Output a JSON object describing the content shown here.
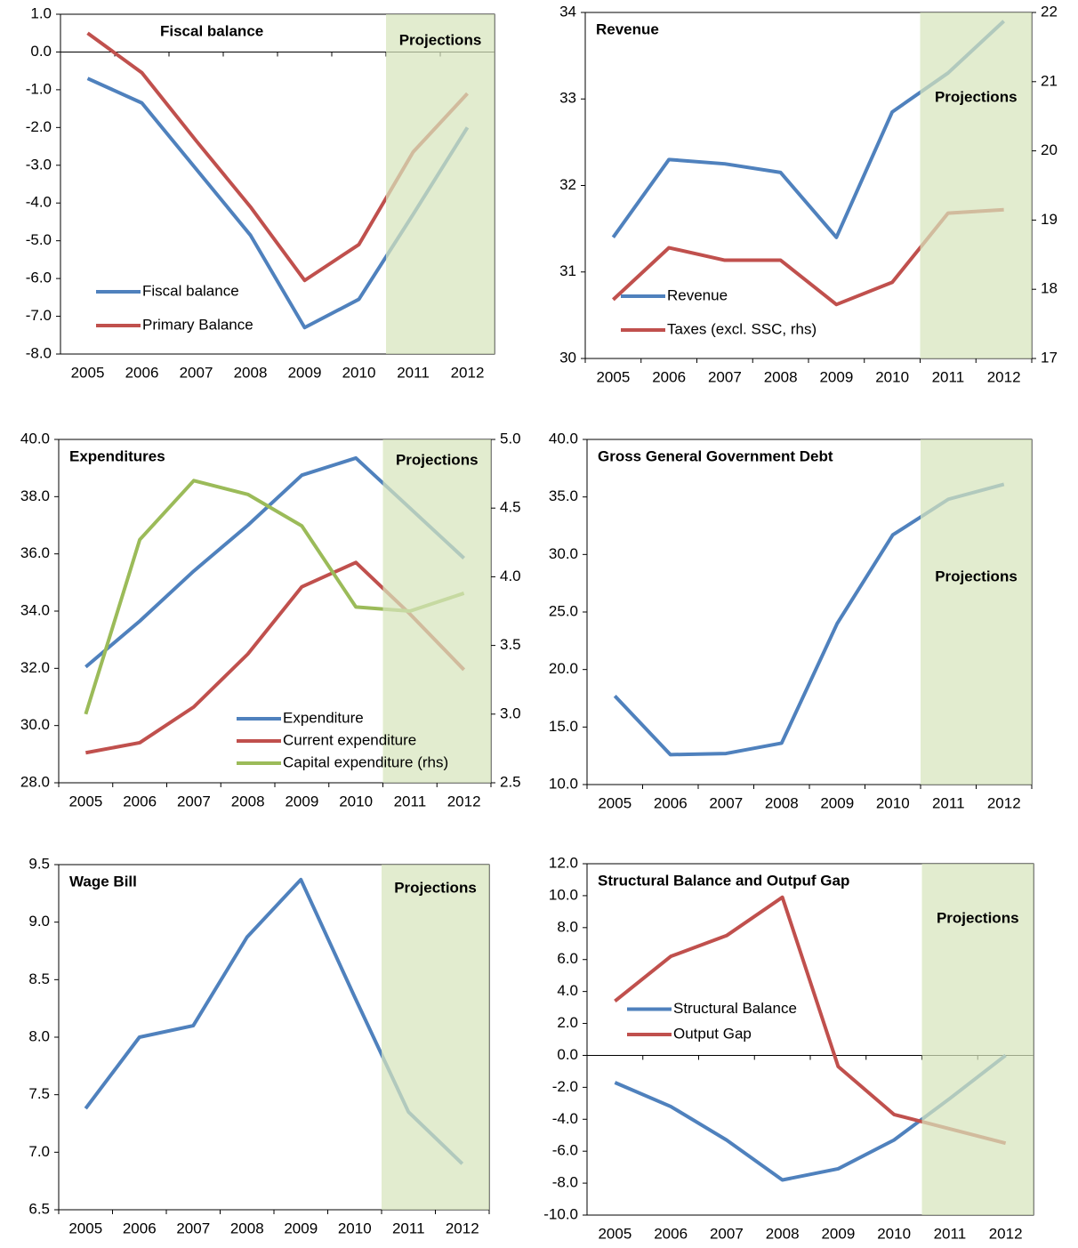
{
  "chart_data": [
    {
      "type": "line",
      "title": "Fiscal balance",
      "annotation": "Projections",
      "legend": "lower left",
      "categories": [
        "2005",
        "2006",
        "2007",
        "2008",
        "2009",
        "2010",
        "2011",
        "2012"
      ],
      "ylim": [
        -8,
        1
      ],
      "yticks": [
        {
          "value": -8,
          "label": "-8.0"
        },
        {
          "value": -7,
          "label": "-7.0"
        },
        {
          "value": -6,
          "label": "-6.0"
        },
        {
          "value": -5,
          "label": "-5.0"
        },
        {
          "value": -4,
          "label": "-4.0"
        },
        {
          "value": -3,
          "label": "-3.0"
        },
        {
          "value": -2,
          "label": "-2.0"
        },
        {
          "value": -1,
          "label": "-1.0"
        },
        {
          "value": 0,
          "label": "0.0"
        },
        {
          "value": 1,
          "label": "1.0"
        }
      ],
      "series": [
        {
          "name": "Fiscal balance",
          "color": "#4f81bd",
          "values": [
            -0.7,
            -1.35,
            -3.1,
            -4.85,
            -7.3,
            -6.55,
            -4.3,
            -2.0
          ]
        },
        {
          "name": "Primary Balance",
          "color": "#c0504d",
          "values": [
            0.5,
            -0.55,
            -2.35,
            -4.1,
            -6.05,
            -5.1,
            -2.65,
            -1.1
          ]
        }
      ]
    },
    {
      "type": "line",
      "title": "Revenue",
      "annotation": "Projections",
      "legend": "lower left",
      "categories": [
        "2005",
        "2006",
        "2007",
        "2008",
        "2009",
        "2010",
        "2011",
        "2012"
      ],
      "ylim": [
        30,
        34
      ],
      "yticks": [
        30,
        31,
        32,
        33,
        34
      ],
      "y2lim": [
        17,
        22
      ],
      "y2ticks": [
        17,
        18,
        19,
        20,
        21,
        22
      ],
      "series": [
        {
          "name": "Revenue",
          "color": "#4f81bd",
          "values": [
            31.4,
            32.3,
            32.25,
            32.15,
            31.4,
            32.85,
            33.3,
            33.9
          ]
        },
        {
          "name": "Taxes (excl. SSC, rhs)",
          "color": "#c0504d",
          "axis": "y2",
          "values": [
            17.85,
            18.6,
            18.42,
            18.42,
            17.78,
            18.1,
            19.1,
            19.15
          ]
        }
      ]
    },
    {
      "type": "line",
      "title": "Expenditures",
      "annotation": "Projections",
      "legend": "lower center",
      "categories": [
        "2005",
        "2006",
        "2007",
        "2008",
        "2009",
        "2010",
        "2011",
        "2012"
      ],
      "ylim": [
        28,
        40
      ],
      "yticks": [
        {
          "value": 28,
          "label": "28.0"
        },
        {
          "value": 30,
          "label": "30.0"
        },
        {
          "value": 32,
          "label": "32.0"
        },
        {
          "value": 34,
          "label": "34.0"
        },
        {
          "value": 36,
          "label": "36.0"
        },
        {
          "value": 38,
          "label": "38.0"
        },
        {
          "value": 40,
          "label": "40.0"
        }
      ],
      "y2lim": [
        2.5,
        5
      ],
      "y2ticks": [
        2.5,
        {
          "value": 3,
          "label": "3.0"
        },
        3.5,
        {
          "value": 4,
          "label": "4.0"
        },
        4.5,
        {
          "value": 5,
          "label": "5.0"
        }
      ],
      "series": [
        {
          "name": "Expenditure",
          "color": "#4f81bd",
          "values": [
            32.05,
            33.65,
            35.4,
            37.0,
            38.75,
            39.35,
            37.6,
            35.85
          ]
        },
        {
          "name": "Current expenditure",
          "color": "#c0504d",
          "values": [
            29.05,
            29.4,
            30.65,
            32.5,
            34.85,
            35.7,
            33.9,
            31.95
          ]
        },
        {
          "name": "Capital expenditure (rhs)",
          "color": "#9bbb59",
          "axis": "y2",
          "values": [
            3.0,
            4.27,
            4.7,
            4.6,
            4.37,
            3.78,
            3.75,
            3.88
          ]
        }
      ]
    },
    {
      "type": "line",
      "title": "Gross General Government Debt",
      "annotation": "Projections",
      "categories": [
        "2005",
        "2006",
        "2007",
        "2008",
        "2009",
        "2010",
        "2011",
        "2012"
      ],
      "ylim": [
        10,
        40
      ],
      "yticks": [
        {
          "value": 10,
          "label": "10.0"
        },
        {
          "value": 15,
          "label": "15.0"
        },
        {
          "value": 20,
          "label": "20.0"
        },
        {
          "value": 25,
          "label": "25.0"
        },
        {
          "value": 30,
          "label": "30.0"
        },
        {
          "value": 35,
          "label": "35.0"
        },
        {
          "value": 40,
          "label": "40.0"
        }
      ],
      "series": [
        {
          "color": "#4f81bd",
          "values": [
            17.7,
            12.6,
            12.7,
            13.6,
            24.0,
            31.7,
            34.8,
            36.1
          ]
        }
      ]
    },
    {
      "type": "line",
      "title": "Wage Bill",
      "annotation": "Projections",
      "categories": [
        "2005",
        "2006",
        "2007",
        "2008",
        "2009",
        "2010",
        "2011",
        "2012"
      ],
      "ylim": [
        6.5,
        9.5
      ],
      "yticks": [
        6.5,
        {
          "value": 7,
          "label": "7.0"
        },
        7.5,
        {
          "value": 8,
          "label": "8.0"
        },
        8.5,
        {
          "value": 9,
          "label": "9.0"
        },
        9.5
      ],
      "series": [
        {
          "color": "#4f81bd",
          "values": [
            7.38,
            8.0,
            8.1,
            8.87,
            9.37,
            8.35,
            7.35,
            6.9
          ]
        }
      ]
    },
    {
      "type": "line",
      "title": "Structural Balance and Outpuf Gap",
      "annotation": "Projections",
      "legend": "center left",
      "categories": [
        "2005",
        "2006",
        "2007",
        "2008",
        "2009",
        "2010",
        "2011",
        "2012"
      ],
      "ylim": [
        -10,
        12
      ],
      "yticks": [
        {
          "value": -10,
          "label": "-10.0"
        },
        {
          "value": -8,
          "label": "-8.0"
        },
        {
          "value": -6,
          "label": "-6.0"
        },
        {
          "value": -4,
          "label": "-4.0"
        },
        {
          "value": -2,
          "label": "-2.0"
        },
        {
          "value": 0,
          "label": "0.0"
        },
        {
          "value": 2,
          "label": "2.0"
        },
        {
          "value": 4,
          "label": "4.0"
        },
        {
          "value": 6,
          "label": "6.0"
        },
        {
          "value": 8,
          "label": "8.0"
        },
        {
          "value": 10,
          "label": "10.0"
        },
        {
          "value": 12,
          "label": "12.0"
        }
      ],
      "series": [
        {
          "name": "Structural Balance",
          "color": "#4f81bd",
          "values": [
            -1.7,
            -3.2,
            -5.3,
            -7.8,
            -7.1,
            -5.3,
            -2.7,
            0.0
          ]
        },
        {
          "name": "Output Gap",
          "color": "#c0504d",
          "values": [
            3.4,
            6.2,
            7.5,
            9.9,
            -0.7,
            -3.7,
            -4.6,
            -5.5
          ]
        }
      ]
    }
  ]
}
